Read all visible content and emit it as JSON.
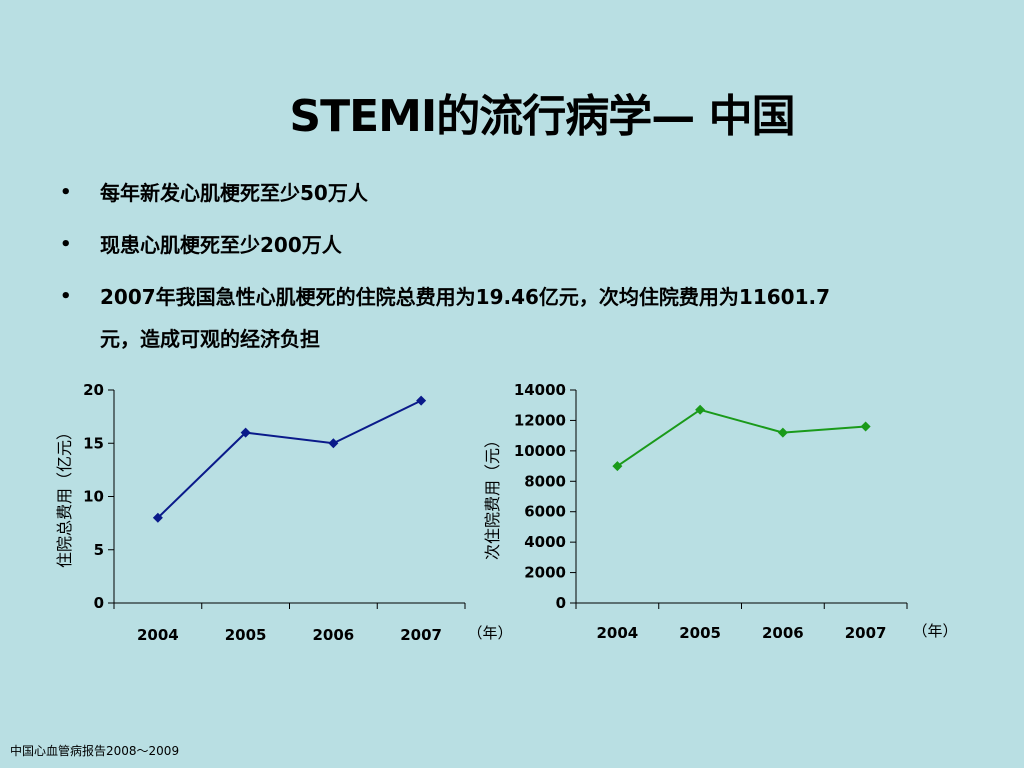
{
  "title": "STEMI的流行病学— 中国",
  "bullets": [
    {
      "symbol": "•",
      "text": "每年新发心肌梗死至少50万人"
    },
    {
      "symbol": "•",
      "text": "现患心肌梗死至少200万人"
    },
    {
      "symbol": "•",
      "text": "2007年我国急性心肌梗死的住院总费用为19.46亿元，次均住院费用为11601.7",
      "text2": "元，造成可观的经济负担"
    }
  ],
  "footer": "中国心血管病报告2008～2009",
  "chart_data": [
    {
      "type": "line",
      "categories": [
        "2004",
        "2005",
        "2006",
        "2007"
      ],
      "series": [
        {
          "values": [
            8,
            16,
            15,
            19
          ]
        }
      ],
      "ylabel": "住院总费用（亿元）",
      "xunit": "（年）",
      "yticks": [
        "0",
        "5",
        "10",
        "15",
        "20"
      ],
      "ylim": [
        0,
        20
      ],
      "color": "#0a1a8a"
    },
    {
      "type": "line",
      "categories": [
        "2004",
        "2005",
        "2006",
        "2007"
      ],
      "series": [
        {
          "values": [
            9000,
            12700,
            11200,
            11600
          ]
        }
      ],
      "ylabel": "次住院费用（元）",
      "xunit": "（年）",
      "yticks": [
        "0",
        "2000",
        "4000",
        "6000",
        "8000",
        "10000",
        "12000",
        "14000"
      ],
      "ylim": [
        0,
        14000
      ],
      "color": "#1a9a1a"
    }
  ]
}
